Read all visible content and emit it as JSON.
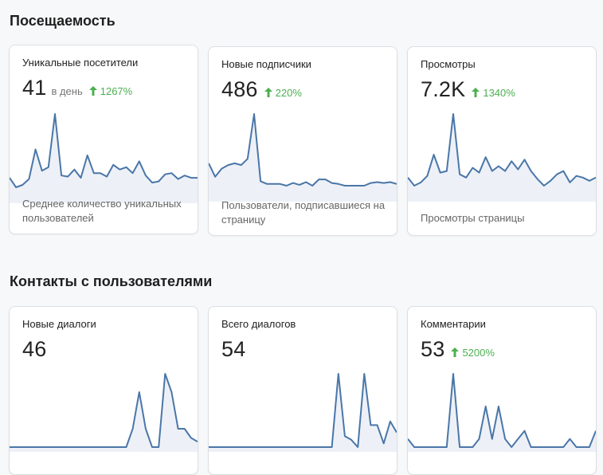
{
  "sections": {
    "traffic": {
      "title": "Посещаемость"
    },
    "contacts": {
      "title": "Контакты с пользователями"
    }
  },
  "colors": {
    "line": "#4a76a8",
    "fill": "#edf1f7",
    "positive": "#4caf50"
  },
  "cards": [
    {
      "title": "Уникальные посетители",
      "value": "41",
      "unit": "в день",
      "delta": "1267%",
      "description": "Среднее количество уникальных пользователей",
      "series": [
        16,
        8,
        10,
        15,
        40,
        22,
        25,
        70,
        18,
        17,
        23,
        16,
        35,
        20,
        20,
        17,
        27,
        23,
        25,
        20,
        30,
        18,
        12,
        13,
        19,
        20,
        15,
        18,
        16,
        16
      ]
    },
    {
      "title": "Новые подписчики",
      "value": "486",
      "unit": "",
      "delta": "220%",
      "description": "Пользователи, подписавшиеся на страницу",
      "series": [
        30,
        15,
        24,
        28,
        30,
        28,
        35,
        85,
        10,
        7,
        7,
        7,
        5,
        8,
        6,
        9,
        5,
        12,
        12,
        8,
        7,
        5,
        5,
        5,
        5,
        8,
        9,
        8,
        9,
        7
      ]
    },
    {
      "title": "Просмотры",
      "value": "7.2K",
      "unit": "",
      "delta": "1340%",
      "description": "Просмотры страницы",
      "series": [
        20,
        10,
        14,
        22,
        48,
        26,
        28,
        98,
        24,
        20,
        32,
        26,
        45,
        28,
        34,
        28,
        40,
        30,
        42,
        28,
        18,
        10,
        16,
        24,
        28,
        14,
        22,
        20,
        16,
        20
      ]
    },
    {
      "title": "Новые диалоги",
      "value": "46",
      "unit": "",
      "delta": "",
      "description": "",
      "series": [
        0,
        0,
        0,
        0,
        0,
        0,
        0,
        0,
        0,
        0,
        0,
        0,
        0,
        0,
        0,
        0,
        0,
        0,
        0,
        1,
        3,
        1,
        0,
        0,
        4,
        3,
        1,
        1,
        0.5,
        0.3
      ]
    },
    {
      "title": "Всего диалогов",
      "value": "54",
      "unit": "",
      "delta": "",
      "description": "",
      "series": [
        0,
        0,
        0,
        0,
        0,
        0,
        0,
        0,
        0,
        0,
        0,
        0,
        0,
        0,
        0,
        0,
        0,
        0,
        0,
        0,
        4,
        0.6,
        0.4,
        0,
        4,
        1.2,
        1.2,
        0.2,
        1.4,
        0.8
      ]
    },
    {
      "title": "Комментарии",
      "value": "53",
      "unit": "",
      "delta": "5200%",
      "description": "",
      "series": [
        1,
        0,
        0,
        0,
        0,
        0,
        0,
        9,
        0,
        0,
        0,
        1,
        5,
        1,
        5,
        1,
        0,
        1,
        2,
        0,
        0,
        0,
        0,
        0,
        0,
        1,
        0,
        0,
        0,
        2
      ]
    }
  ]
}
